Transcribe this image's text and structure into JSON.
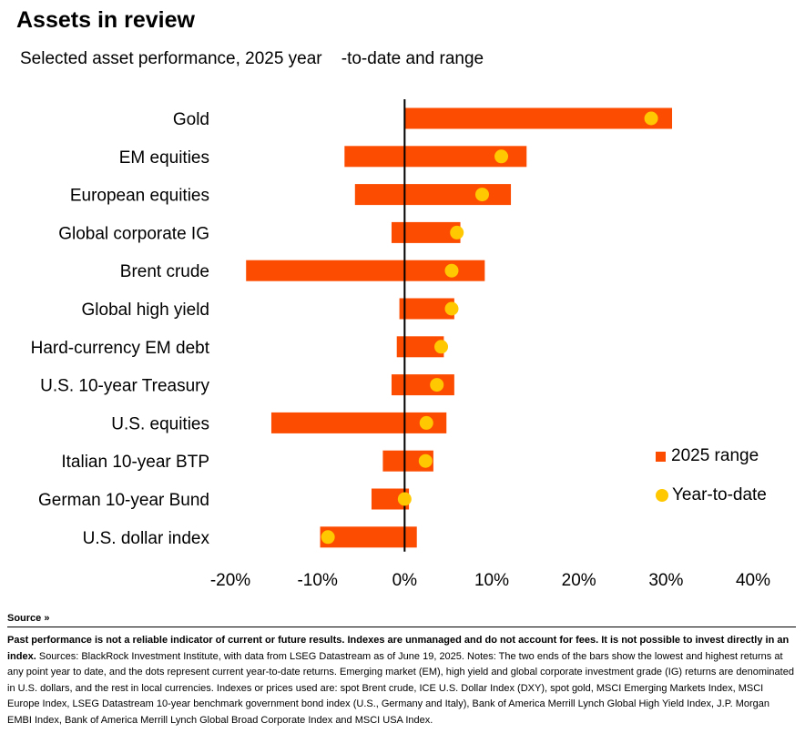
{
  "title": "Assets in review",
  "subtitle": "Selected asset performance, 2025 year    -to-date and range",
  "colors": {
    "range": "#fc4c02",
    "ytd": "#ffc800",
    "axis": "#000000"
  },
  "legend": {
    "range_label": "2025 range",
    "ytd_label": "Year-to-date"
  },
  "source": {
    "toggle_label": "Source »",
    "disclaimer": "Past performance is not a reliable indicator of current or future results. Indexes are unmanaged and do not account for fees. It is not possible to invest directly in an index.",
    "notes": " Sources: BlackRock Investment Institute, with data from LSEG Datastream as of June 19, 2025. Notes: The two ends of the bars show the lowest and highest returns at any point year to date, and the dots represent current year-to-date returns. Emerging market (EM), high yield and global corporate investment grade (IG) returns are denominated in U.S. dollars, and the rest in local currencies. Indexes or prices used are: spot Brent crude, ICE U.S. Dollar Index (DXY), spot gold, MSCI Emerging Markets Index, MSCI Europe Index, LSEG Datastream 10-year benchmark government bond index (U.S., Germany and Italy), Bank of America Merrill Lynch Global High Yield Index, J.P. Morgan EMBI Index, Bank of America Merrill Lynch Global Broad Corporate Index and MSCI USA Index."
  },
  "chart_data": {
    "type": "bar",
    "orientation": "horizontal-range",
    "categories": [
      "Gold",
      "EM equities",
      "European equities",
      "Global corporate IG",
      "Brent crude",
      "Global high yield",
      "Hard-currency EM debt",
      "U.S. 10-year Treasury",
      "U.S. equities",
      "Italian 10-year BTP",
      "German 10-year Bund",
      "U.S. dollar index"
    ],
    "series": [
      {
        "name": "2025 range",
        "low": [
          0,
          -6.9,
          -5.7,
          -1.5,
          -18.2,
          -0.6,
          -0.9,
          -1.5,
          -15.3,
          -2.5,
          -3.8,
          -9.7
        ],
        "high": [
          30.7,
          14.0,
          12.2,
          6.4,
          9.2,
          5.7,
          4.5,
          5.7,
          4.8,
          3.3,
          0.5,
          1.4
        ]
      },
      {
        "name": "Year-to-date",
        "values": [
          28.3,
          11.1,
          8.9,
          6.0,
          5.4,
          5.4,
          4.2,
          3.7,
          2.5,
          2.4,
          0.0,
          -8.8
        ]
      }
    ],
    "xlim": [
      -20,
      40
    ],
    "xticks": [
      -20,
      -10,
      0,
      10,
      20,
      30,
      40
    ],
    "xtick_labels": [
      "-20%",
      "-10%",
      "0%",
      "10%",
      "20%",
      "30%",
      "40%"
    ],
    "grid": false,
    "legend_position": "bottom-right"
  }
}
